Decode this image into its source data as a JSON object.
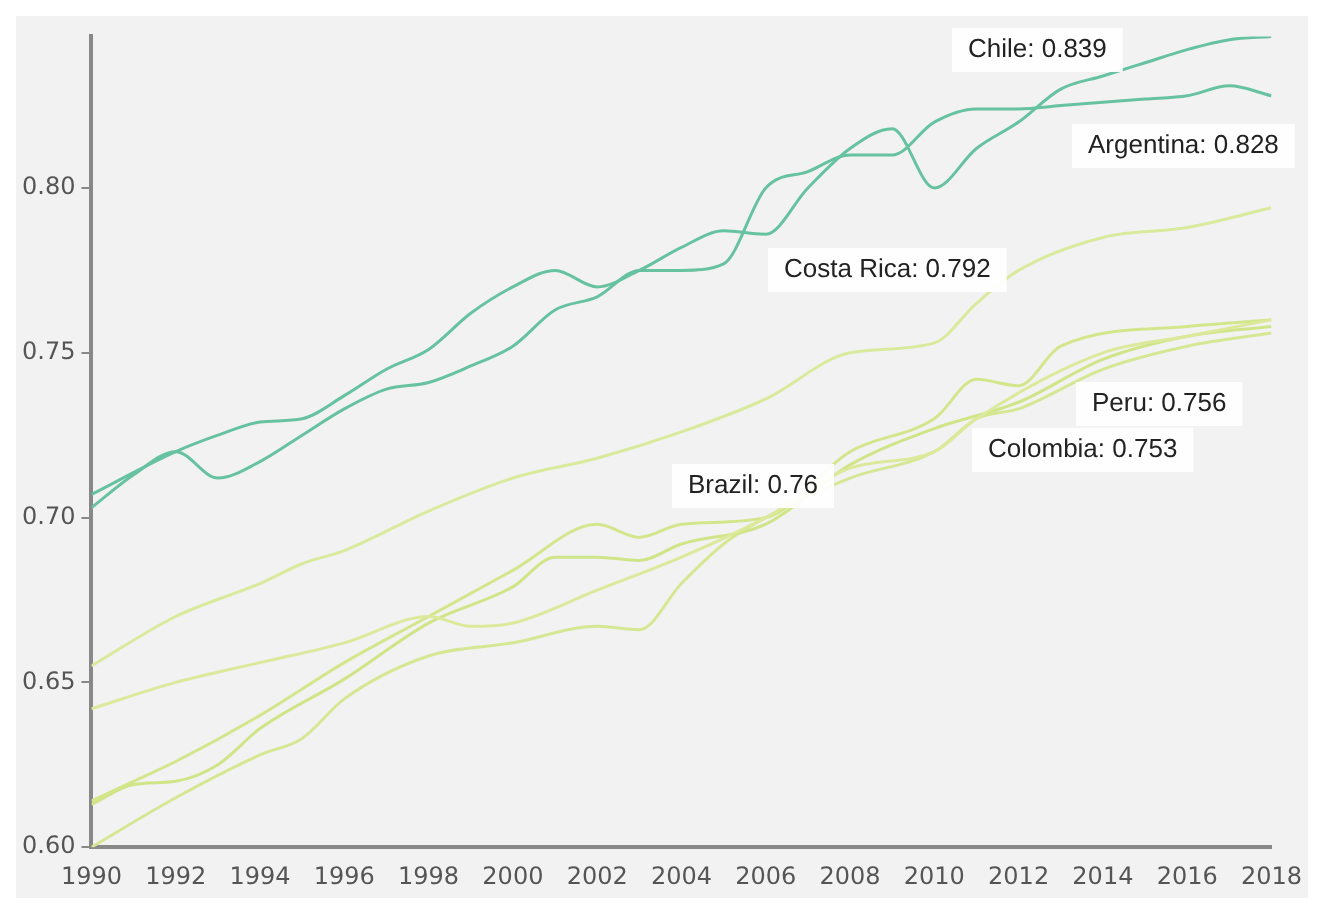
{
  "chart_data": {
    "type": "line",
    "xlim": [
      1990,
      2018
    ],
    "xticks": [
      1990,
      1992,
      1994,
      1996,
      1998,
      2000,
      2002,
      2004,
      2006,
      2008,
      2010,
      2012,
      2014,
      2016,
      {
        "value": 2018,
        "label": "2018"
      }
    ],
    "ylim": [
      0.6,
      0.846
    ],
    "yticks": [
      {
        "value": 0.6,
        "label": "0.60"
      },
      0.65,
      {
        "value": 0.7,
        "label": "0.70"
      },
      0.75,
      {
        "value": 0.8,
        "label": "0.80"
      }
    ],
    "grid": false,
    "legend": false,
    "marker": "none",
    "series": [
      {
        "color": "#66c2a0",
        "x": [
          1990,
          1992,
          1993,
          1994,
          1995,
          1996,
          1997,
          1998,
          1999,
          2000,
          2001,
          2002,
          2003,
          2004,
          2005,
          2006,
          2007,
          2008,
          2009,
          2010,
          2011,
          2012,
          2013,
          2014,
          2015,
          2016,
          2017,
          2018
        ],
        "values": [
          0.707,
          0.72,
          0.725,
          0.729,
          0.73,
          0.737,
          0.745,
          0.751,
          0.762,
          0.77,
          0.775,
          0.77,
          0.775,
          0.782,
          0.787,
          0.786,
          0.8,
          0.812,
          0.818,
          0.8,
          0.812,
          0.82,
          0.83,
          0.834,
          0.838,
          0.842,
          0.845,
          0.846
        ]
      },
      {
        "color": "#66c2a0",
        "x": [
          1990,
          1991,
          1992,
          1993,
          1994,
          1995,
          1996,
          1997,
          1998,
          1999,
          2000,
          2001,
          2002,
          2003,
          2004,
          2005,
          2006,
          2007,
          2008,
          2009,
          2010,
          2011,
          2012,
          2013,
          2014,
          2015,
          2016,
          2017,
          2018
        ],
        "values": [
          0.703,
          0.713,
          0.72,
          0.712,
          0.717,
          0.725,
          0.733,
          0.739,
          0.741,
          0.746,
          0.752,
          0.763,
          0.767,
          0.775,
          0.775,
          0.777,
          0.8,
          0.805,
          0.81,
          0.81,
          0.82,
          0.824,
          0.824,
          0.825,
          0.826,
          0.827,
          0.828,
          0.831,
          0.828
        ]
      },
      {
        "color": "#d9ea9c",
        "x": [
          1990,
          1992,
          1994,
          1995,
          1996,
          1998,
          2000,
          2002,
          2004,
          2006,
          2008,
          2010,
          2011,
          2012,
          2014,
          2016,
          2018
        ],
        "values": [
          0.655,
          0.67,
          0.68,
          0.686,
          0.69,
          0.702,
          0.712,
          0.718,
          0.726,
          0.736,
          0.75,
          0.753,
          0.765,
          0.775,
          0.785,
          0.788,
          0.794
        ]
      },
      {
        "color": "#dce99a",
        "x": [
          1990,
          1992,
          1994,
          1996,
          1998,
          1999,
          2000,
          2002,
          2004,
          2006,
          2008,
          2010,
          2011,
          2014,
          2016,
          2018
        ],
        "values": [
          0.642,
          0.65,
          0.656,
          0.662,
          0.67,
          0.667,
          0.668,
          0.678,
          0.688,
          0.7,
          0.715,
          0.72,
          0.73,
          0.75,
          0.755,
          0.76
        ]
      },
      {
        "color": "#d4e68c",
        "x": [
          1990,
          1991,
          1992,
          1994,
          1996,
          1998,
          2000,
          2002,
          2003,
          2004,
          2006,
          2008,
          2010,
          2011,
          2012,
          2013,
          2016,
          2018
        ],
        "values": [
          0.614,
          0.62,
          0.626,
          0.64,
          0.656,
          0.67,
          0.684,
          0.698,
          0.694,
          0.698,
          0.7,
          0.72,
          0.73,
          0.742,
          0.74,
          0.752,
          0.758,
          0.76
        ]
      },
      {
        "color": "#d0e488",
        "x": [
          1990,
          1991,
          1992,
          1993,
          1994,
          1996,
          1998,
          2000,
          2001,
          2002,
          2003,
          2004,
          2006,
          2008,
          2010,
          2012,
          2014,
          2016,
          2018
        ],
        "values": [
          0.613,
          0.619,
          0.62,
          0.625,
          0.636,
          0.651,
          0.668,
          0.679,
          0.688,
          0.688,
          0.687,
          0.692,
          0.698,
          0.716,
          0.727,
          0.735,
          0.748,
          0.755,
          0.758
        ]
      },
      {
        "color": "#d6e794",
        "x": [
          1990,
          1992,
          1994,
          1995,
          1996,
          1998,
          2000,
          2002,
          2003,
          2004,
          2005,
          2006,
          2008,
          2010,
          2011,
          2012,
          2014,
          2016,
          2018
        ],
        "values": [
          0.6,
          0.615,
          0.628,
          0.633,
          0.645,
          0.658,
          0.662,
          0.667,
          0.666,
          0.68,
          0.692,
          0.7,
          0.712,
          0.72,
          0.73,
          0.733,
          0.745,
          0.752,
          0.756
        ]
      }
    ],
    "annotations": [
      "Chile: 0.839",
      "Argentina: 0.828",
      "Costa Rica: 0.792",
      "Peru: 0.756",
      "Colombia: 0.753",
      "Brazil: 0.76"
    ]
  }
}
